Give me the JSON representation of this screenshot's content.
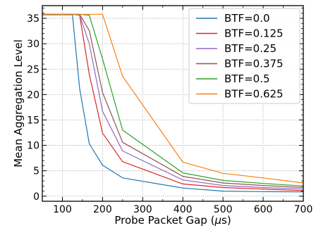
{
  "chart_data": {
    "type": "line",
    "title": "",
    "xlabel": "Probe Packet Gap (μs)",
    "xlabel_parts": [
      "Probe Packet Gap (",
      "μ",
      "s)"
    ],
    "ylabel": "Mean Aggregation Level",
    "xlim": [
      50,
      700
    ],
    "ylim": [
      -1,
      37.5
    ],
    "xticks": [
      100,
      200,
      300,
      400,
      500,
      600,
      700
    ],
    "yticks": [
      0,
      5,
      10,
      15,
      20,
      25,
      30,
      35
    ],
    "grid": true,
    "legend_position": "top-right",
    "series": [
      {
        "name": "BTF=0.0",
        "color": "#1f77b4",
        "x": [
          50,
          100,
          125,
          143,
          167,
          200,
          250,
          400,
          500,
          600,
          700
        ],
        "y": [
          35.7,
          35.7,
          35.7,
          21.2,
          10.3,
          6.1,
          3.6,
          1.6,
          1.0,
          0.9,
          0.85
        ]
      },
      {
        "name": "BTF=0.125",
        "color": "#d62728",
        "x": [
          50,
          100,
          125,
          143,
          167,
          200,
          250,
          400,
          500,
          600,
          700
        ],
        "y": [
          35.8,
          35.8,
          35.8,
          35.6,
          24.0,
          12.4,
          6.8,
          2.4,
          1.7,
          1.4,
          1.1
        ]
      },
      {
        "name": "BTF=0.25",
        "color": "#9467bd",
        "x": [
          50,
          100,
          125,
          143,
          167,
          200,
          250,
          400,
          500,
          600,
          700
        ],
        "y": [
          35.8,
          35.8,
          35.8,
          35.6,
          30.0,
          16.7,
          8.9,
          3.2,
          2.1,
          1.7,
          1.4
        ]
      },
      {
        "name": "BTF=0.375",
        "color": "#8c564b",
        "x": [
          50,
          100,
          125,
          143,
          167,
          200,
          250,
          400,
          500,
          600,
          700
        ],
        "y": [
          35.8,
          35.8,
          35.8,
          35.8,
          32.6,
          20.4,
          10.6,
          3.9,
          2.6,
          2.1,
          1.7
        ]
      },
      {
        "name": "BTF=0.5",
        "color": "#2ca02c",
        "x": [
          50,
          100,
          125,
          143,
          167,
          200,
          250,
          400,
          500,
          600,
          700
        ],
        "y": [
          35.8,
          35.8,
          35.8,
          35.8,
          35.6,
          27.0,
          13.0,
          4.6,
          3.1,
          2.5,
          2.0
        ]
      },
      {
        "name": "BTF=0.625",
        "color": "#ff7f0e",
        "x": [
          50,
          100,
          125,
          143,
          167,
          200,
          250,
          400,
          500,
          600,
          700
        ],
        "y": [
          35.8,
          35.8,
          35.8,
          35.8,
          35.8,
          35.8,
          23.6,
          6.7,
          4.5,
          3.6,
          2.6
        ]
      }
    ]
  }
}
